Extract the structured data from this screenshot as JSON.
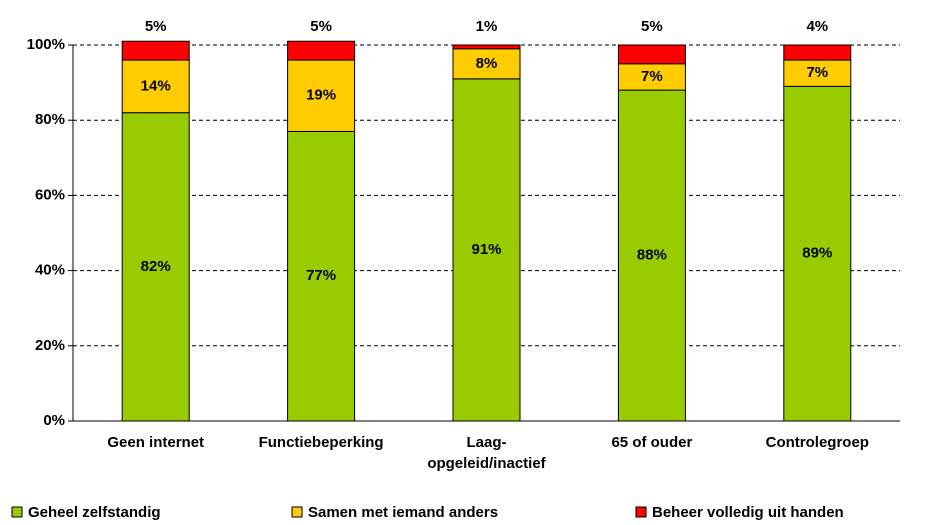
{
  "chart_data": {
    "type": "stacked_bar",
    "categories": [
      "Geen internet",
      "Functiebeperking",
      "Laag-opgeleid/inactief",
      "65 of ouder",
      "Controlegroep"
    ],
    "series": [
      {
        "name": "Geheel zelfstandig",
        "color": "#99cc00",
        "values": [
          82,
          77,
          91,
          88,
          89
        ],
        "value_labels": [
          "82%",
          "77%",
          "91%",
          "88%",
          "89%"
        ]
      },
      {
        "name": "Samen met iemand anders",
        "color": "#ffcc00",
        "values": [
          14,
          19,
          8,
          7,
          7
        ],
        "value_labels": [
          "14%",
          "19%",
          "8%",
          "7%",
          "7%"
        ]
      },
      {
        "name": "Beheer volledig uit handen",
        "color": "#ff0000",
        "values": [
          5,
          5,
          1,
          5,
          4
        ],
        "value_labels": [
          "5%",
          "5%",
          "1%",
          "5%",
          "4%"
        ]
      }
    ],
    "ylim": [
      0,
      100
    ],
    "yticks": [
      {
        "value": 0,
        "label": "0%"
      },
      {
        "value": 20,
        "label": "20%"
      },
      {
        "value": 40,
        "label": "40%"
      },
      {
        "value": 60,
        "label": "60%"
      },
      {
        "value": 80,
        "label": "80%"
      },
      {
        "value": 100,
        "label": "100%"
      }
    ],
    "grid": true,
    "legend": "bottom"
  }
}
